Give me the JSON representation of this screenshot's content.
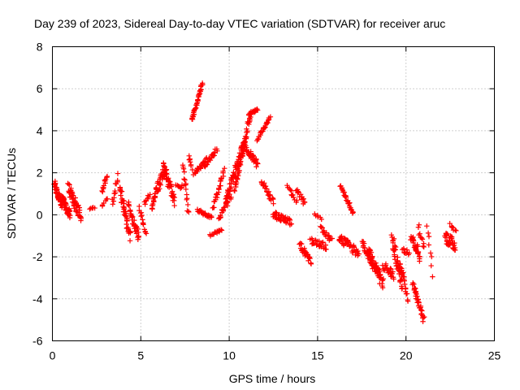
{
  "chart_data": {
    "type": "scatter",
    "title": "Day 239 of 2023, Sidereal Day-to-day VTEC variation (SDTVAR) for receiver aruc",
    "xlabel": "GPS time / hours",
    "ylabel": "SDTVAR / TECUs",
    "xlim": [
      0,
      25
    ],
    "ylim": [
      -6,
      8
    ],
    "xticks": [
      "0",
      "5",
      "10",
      "15",
      "20",
      "25"
    ],
    "yticks": [
      "-6",
      "-4",
      "-2",
      "0",
      "2",
      "4",
      "6",
      "8"
    ],
    "grid": true,
    "marker": "+",
    "color": "#ff0000",
    "segments": [
      {
        "x0": 0.1,
        "x1": 0.5,
        "y0": 1.5,
        "y1": 0.5,
        "n": 40,
        "spread": 0.35
      },
      {
        "x0": 0.5,
        "x1": 1.0,
        "y0": 0.8,
        "y1": 0.0,
        "n": 40,
        "spread": 0.45
      },
      {
        "x0": 0.9,
        "x1": 1.6,
        "y0": 1.3,
        "y1": -0.1,
        "n": 50,
        "spread": 0.55
      },
      {
        "x0": 2.1,
        "x1": 2.4,
        "y0": 0.3,
        "y1": 0.3,
        "n": 6,
        "spread": 0.1
      },
      {
        "x0": 2.8,
        "x1": 3.1,
        "y0": 1.1,
        "y1": 1.9,
        "n": 12,
        "spread": 0.2
      },
      {
        "x0": 2.8,
        "x1": 3.1,
        "y0": 0.4,
        "y1": 0.8,
        "n": 6,
        "spread": 0.15
      },
      {
        "x0": 3.4,
        "x1": 3.7,
        "y0": 0.5,
        "y1": 1.9,
        "n": 12,
        "spread": 0.3
      },
      {
        "x0": 3.8,
        "x1": 4.4,
        "y0": 1.3,
        "y1": -1.1,
        "n": 45,
        "spread": 0.5
      },
      {
        "x0": 4.3,
        "x1": 4.9,
        "y0": 0.5,
        "y1": -1.2,
        "n": 35,
        "spread": 0.5
      },
      {
        "x0": 4.9,
        "x1": 5.3,
        "y0": 0.3,
        "y1": -0.9,
        "n": 14,
        "spread": 0.25
      },
      {
        "x0": 5.2,
        "x1": 5.5,
        "y0": 0.5,
        "y1": 1.0,
        "n": 8,
        "spread": 0.25
      },
      {
        "x0": 5.6,
        "x1": 6.4,
        "y0": 0.4,
        "y1": 2.3,
        "n": 50,
        "spread": 0.5
      },
      {
        "x0": 6.3,
        "x1": 6.9,
        "y0": 2.3,
        "y1": 0.6,
        "n": 40,
        "spread": 0.5
      },
      {
        "x0": 7.0,
        "x1": 7.4,
        "y0": 1.4,
        "y1": 1.3,
        "n": 8,
        "spread": 0.3
      },
      {
        "x0": 7.4,
        "x1": 7.7,
        "y0": 2.4,
        "y1": 0.0,
        "n": 16,
        "spread": 0.3
      },
      {
        "x0": 7.7,
        "x1": 7.9,
        "y0": 2.8,
        "y1": 2.2,
        "n": 8,
        "spread": 0.2
      },
      {
        "x0": 7.9,
        "x1": 8.5,
        "y0": 4.5,
        "y1": 6.3,
        "n": 40,
        "spread": 0.12
      },
      {
        "x0": 8.0,
        "x1": 8.7,
        "y0": 2.0,
        "y1": 2.6,
        "n": 22,
        "spread": 0.25
      },
      {
        "x0": 8.6,
        "x1": 9.3,
        "y0": 2.3,
        "y1": 3.1,
        "n": 22,
        "spread": 0.2
      },
      {
        "x0": 8.2,
        "x1": 9.0,
        "y0": 0.2,
        "y1": -0.1,
        "n": 25,
        "spread": 0.15
      },
      {
        "x0": 8.9,
        "x1": 9.6,
        "y0": -1.0,
        "y1": -0.7,
        "n": 16,
        "spread": 0.12
      },
      {
        "x0": 9.1,
        "x1": 9.7,
        "y0": 0.3,
        "y1": 2.1,
        "n": 25,
        "spread": 0.25
      },
      {
        "x0": 9.4,
        "x1": 10.1,
        "y0": -0.1,
        "y1": 0.9,
        "n": 22,
        "spread": 0.3
      },
      {
        "x0": 9.8,
        "x1": 10.9,
        "y0": 0.6,
        "y1": 3.5,
        "n": 70,
        "spread": 0.55
      },
      {
        "x0": 10.3,
        "x1": 11.2,
        "y0": 1.2,
        "y1": 4.8,
        "n": 50,
        "spread": 0.3
      },
      {
        "x0": 10.9,
        "x1": 11.6,
        "y0": 3.2,
        "y1": 2.4,
        "n": 35,
        "spread": 0.35
      },
      {
        "x0": 11.1,
        "x1": 11.6,
        "y0": 4.8,
        "y1": 5.0,
        "n": 18,
        "spread": 0.12
      },
      {
        "x0": 11.6,
        "x1": 12.3,
        "y0": 3.6,
        "y1": 4.6,
        "n": 25,
        "spread": 0.15
      },
      {
        "x0": 11.8,
        "x1": 12.5,
        "y0": 1.6,
        "y1": 0.6,
        "n": 25,
        "spread": 0.3
      },
      {
        "x0": 12.5,
        "x1": 13.5,
        "y0": 0.0,
        "y1": -0.4,
        "n": 40,
        "spread": 0.35
      },
      {
        "x0": 13.3,
        "x1": 13.8,
        "y0": 1.4,
        "y1": 0.6,
        "n": 12,
        "spread": 0.2
      },
      {
        "x0": 13.8,
        "x1": 14.3,
        "y0": 1.2,
        "y1": 0.5,
        "n": 14,
        "spread": 0.2
      },
      {
        "x0": 14.0,
        "x1": 14.6,
        "y0": -1.4,
        "y1": -2.2,
        "n": 30,
        "spread": 0.3
      },
      {
        "x0": 14.6,
        "x1": 15.5,
        "y0": -1.2,
        "y1": -1.5,
        "n": 25,
        "spread": 0.3
      },
      {
        "x0": 14.8,
        "x1": 15.2,
        "y0": 0.1,
        "y1": -0.3,
        "n": 6,
        "spread": 0.2
      },
      {
        "x0": 15.2,
        "x1": 15.8,
        "y0": -0.7,
        "y1": -1.2,
        "n": 18,
        "spread": 0.3
      },
      {
        "x0": 16.3,
        "x1": 17.0,
        "y0": 1.4,
        "y1": 0.1,
        "n": 30,
        "spread": 0.15
      },
      {
        "x0": 16.2,
        "x1": 17.3,
        "y0": -1.1,
        "y1": -1.8,
        "n": 45,
        "spread": 0.45
      },
      {
        "x0": 17.5,
        "x1": 18.1,
        "y0": -1.3,
        "y1": -2.3,
        "n": 25,
        "spread": 0.35
      },
      {
        "x0": 17.9,
        "x1": 18.7,
        "y0": -1.8,
        "y1": -3.3,
        "n": 55,
        "spread": 0.6
      },
      {
        "x0": 18.7,
        "x1": 19.3,
        "y0": -2.4,
        "y1": -2.9,
        "n": 25,
        "spread": 0.45
      },
      {
        "x0": 19.2,
        "x1": 19.8,
        "y0": -1.2,
        "y1": -3.3,
        "n": 45,
        "spread": 0.8
      },
      {
        "x0": 19.7,
        "x1": 20.1,
        "y0": -2.3,
        "y1": -4.0,
        "n": 18,
        "spread": 0.3
      },
      {
        "x0": 19.8,
        "x1": 20.2,
        "y0": -1.6,
        "y1": -1.8,
        "n": 10,
        "spread": 0.3
      },
      {
        "x0": 20.3,
        "x1": 20.8,
        "y0": -1.0,
        "y1": -2.0,
        "n": 30,
        "spread": 0.5
      },
      {
        "x0": 20.4,
        "x1": 21.0,
        "y0": -3.3,
        "y1": -5.0,
        "n": 35,
        "spread": 0.3
      },
      {
        "x0": 20.7,
        "x1": 21.0,
        "y0": -0.6,
        "y1": -1.6,
        "n": 10,
        "spread": 0.35
      },
      {
        "x0": 21.2,
        "x1": 21.5,
        "y0": -0.4,
        "y1": -2.8,
        "n": 8,
        "spread": 0.3
      },
      {
        "x0": 22.2,
        "x1": 22.8,
        "y0": -1.0,
        "y1": -1.5,
        "n": 35,
        "spread": 0.6
      },
      {
        "x0": 22.5,
        "x1": 22.8,
        "y0": -0.4,
        "y1": -0.8,
        "n": 8,
        "spread": 0.2
      }
    ]
  }
}
